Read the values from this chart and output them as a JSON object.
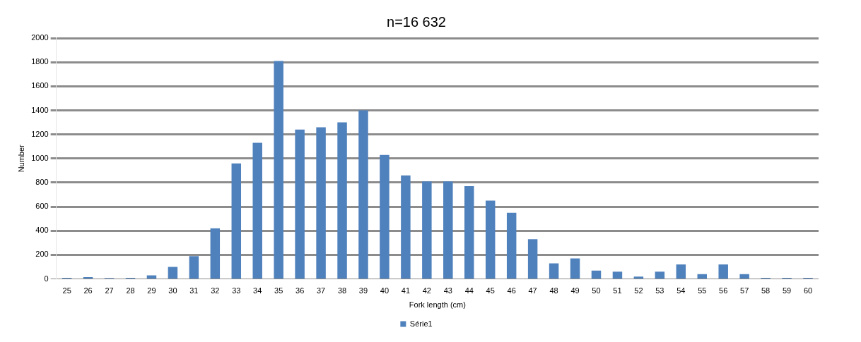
{
  "chart_data": {
    "type": "bar",
    "title": "n=16 632",
    "xlabel": "Fork length (cm)",
    "ylabel": "Number",
    "categories": [
      "25",
      "26",
      "27",
      "28",
      "29",
      "30",
      "31",
      "32",
      "33",
      "34",
      "35",
      "36",
      "37",
      "38",
      "39",
      "40",
      "41",
      "42",
      "43",
      "44",
      "45",
      "46",
      "47",
      "48",
      "49",
      "50",
      "51",
      "52",
      "53",
      "54",
      "55",
      "56",
      "57",
      "58",
      "59",
      "60"
    ],
    "series": [
      {
        "name": "Série1",
        "color": "#4f81bd",
        "values": [
          10,
          15,
          8,
          10,
          30,
          100,
          190,
          420,
          960,
          1130,
          1810,
          1240,
          1260,
          1300,
          1400,
          1030,
          860,
          810,
          810,
          770,
          650,
          550,
          330,
          130,
          170,
          70,
          60,
          20,
          60,
          120,
          40,
          120,
          40,
          10,
          10,
          10
        ]
      }
    ],
    "ylim": [
      0,
      2000
    ],
    "yticks": [
      0,
      200,
      400,
      600,
      800,
      1000,
      1200,
      1400,
      1600,
      1800,
      2000
    ],
    "grid": "y",
    "legend": "bottom"
  }
}
